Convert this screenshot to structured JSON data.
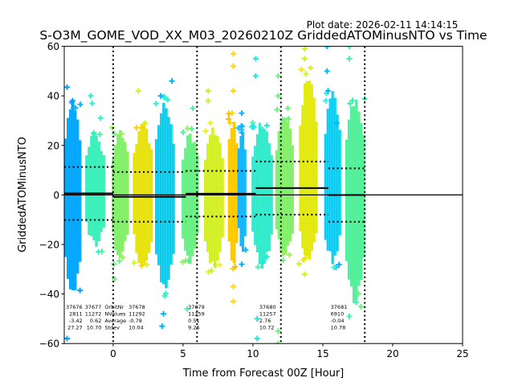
{
  "chart_data": {
    "type": "scatter",
    "title": "S-O3M_GOME_VOD_XX_M03_20260210Z GriddedATOMinusNTO vs Time",
    "plot_date": "Plot date: 2026-02-11 14:14:15",
    "xlabel": "Time from Forecast 00Z [Hour]",
    "ylabel": "GriddedATOMinusNTO",
    "xlim": [
      -3.5,
      25
    ],
    "ylim": [
      -60,
      60
    ],
    "xticks": [
      0,
      5,
      10,
      15,
      20,
      25
    ],
    "yticks": [
      -60,
      -40,
      -20,
      0,
      20,
      40,
      60
    ],
    "xtick_labels": [
      "0",
      "5",
      "10",
      "15",
      "20",
      "25"
    ],
    "ytick_labels": [
      "−60",
      "−40",
      "−20",
      "0",
      "20",
      "40",
      "60"
    ],
    "zero_line": 0,
    "orbit_boundaries": [
      0,
      6,
      12,
      18
    ],
    "swaths": [
      {
        "x0": -3.5,
        "x1": -2.3,
        "c0": "#00a0ff",
        "c1": "#10b4ff",
        "ymax": 38,
        "ymin": -42,
        "outliers": [
          [
            -3.3,
            43.5
          ],
          [
            -3.3,
            -58
          ]
        ]
      },
      {
        "x0": -2.0,
        "x1": -0.6,
        "c0": "#30f0c8",
        "c1": "#50f0a8",
        "ymax": 26,
        "ymin": -22,
        "outliers": [
          [
            -1.6,
            40
          ],
          [
            -1.5,
            37
          ],
          [
            -0.9,
            31
          ]
        ]
      },
      {
        "x0": -0.1,
        "x1": 1.1,
        "c0": "#70f080",
        "c1": "#a0f050",
        "ymax": 27,
        "ymin": -27,
        "outliers": [
          [
            0.1,
            -34
          ]
        ]
      },
      {
        "x0": 1.4,
        "x1": 2.8,
        "c0": "#d8f020",
        "c1": "#ffd000",
        "ymax": 30,
        "ymin": -30,
        "outliers": [
          [
            1.8,
            42
          ],
          [
            2.3,
            29
          ]
        ]
      },
      {
        "x0": 3.0,
        "x1": 4.4,
        "c0": "#00b4ff",
        "c1": "#30f0d0",
        "ymax": 38,
        "ymin": -40,
        "outliers": [
          [
            3.4,
            40
          ],
          [
            4.2,
            46
          ],
          [
            3.6,
            -48
          ],
          [
            3.5,
            -53
          ]
        ]
      },
      {
        "x0": 4.9,
        "x1": 6.1,
        "c0": "#50f0a0",
        "c1": "#90f060",
        "ymax": 26,
        "ymin": -28,
        "outliers": [
          [
            5.7,
            35
          ],
          [
            5.3,
            -46
          ]
        ]
      },
      {
        "x0": 6.5,
        "x1": 7.9,
        "c0": "#c0f030",
        "c1": "#f0f020",
        "ymax": 28,
        "ymin": -30,
        "outliers": [
          [
            6.8,
            42
          ],
          [
            6.8,
            38
          ]
        ]
      },
      {
        "x0": 8.2,
        "x1": 8.9,
        "c0": "#ffd800",
        "c1": "#ffb800",
        "ymax": 32,
        "ymin": -30,
        "outliers": [
          [
            8.6,
            57
          ],
          [
            8.6,
            52
          ],
          [
            8.6,
            42
          ],
          [
            8.6,
            -37
          ],
          [
            8.6,
            -43
          ]
        ]
      },
      {
        "x0": 8.9,
        "x1": 9.5,
        "c0": "#10b0ff",
        "c1": "#20c0ff",
        "ymax": 28,
        "ymin": -24,
        "outliers": [
          [
            9.2,
            33
          ],
          [
            9.2,
            -28
          ]
        ]
      },
      {
        "x0": 9.9,
        "x1": 11.4,
        "c0": "#20e8e0",
        "c1": "#50f0b0",
        "ymax": 30,
        "ymin": -30,
        "outliers": [
          [
            10.2,
            55
          ],
          [
            10.2,
            48
          ],
          [
            10.3,
            -50
          ],
          [
            10.3,
            -58
          ],
          [
            11.0,
            28
          ],
          [
            11.0,
            -25
          ]
        ]
      },
      {
        "x0": 11.6,
        "x1": 12.9,
        "c0": "#70f080",
        "c1": "#a0f050",
        "ymax": 34,
        "ymin": -26,
        "outliers": [
          [
            11.8,
            48
          ],
          [
            11.8,
            40
          ],
          [
            12.5,
            35
          ],
          [
            11.8,
            -55
          ],
          [
            11.8,
            -60
          ]
        ]
      },
      {
        "x0": 13.3,
        "x1": 14.6,
        "c0": "#d0f020",
        "c1": "#ffe000",
        "ymax": 50,
        "ymin": -28,
        "outliers": [
          [
            13.7,
            59
          ],
          [
            13.7,
            55
          ],
          [
            13.7,
            -32
          ]
        ]
      },
      {
        "x0": 15.1,
        "x1": 16.3,
        "c0": "#00b8ff",
        "c1": "#30f0e0",
        "ymax": 42,
        "ymin": -28,
        "outliers": [
          [
            15.3,
            60
          ],
          [
            15.3,
            50
          ],
          [
            16.0,
            29
          ]
        ]
      },
      {
        "x0": 16.6,
        "x1": 18.0,
        "c0": "#40f0b0",
        "c1": "#70f080",
        "ymax": 40,
        "ymin": -44,
        "outliers": [
          [
            16.9,
            60
          ],
          [
            16.9,
            55
          ],
          [
            16.9,
            -49
          ]
        ]
      }
    ],
    "mean_segments": [
      {
        "x0": -3.5,
        "x1": 0.0,
        "mean": 0.62,
        "plus_sd": 11.3,
        "minus_sd": -10.1
      },
      {
        "x0": 0.0,
        "x1": 5.2,
        "mean": -0.78,
        "plus_sd": 9.26,
        "minus_sd": -10.82
      },
      {
        "x0": 5.2,
        "x1": 10.2,
        "mean": 0.51,
        "plus_sd": 9.7,
        "minus_sd": -8.7
      },
      {
        "x0": 10.2,
        "x1": 15.4,
        "mean": 2.76,
        "plus_sd": 13.48,
        "minus_sd": -7.96
      },
      {
        "x0": 15.4,
        "x1": 18.0,
        "mean": -0.04,
        "plus_sd": 10.74,
        "minus_sd": -10.82
      }
    ],
    "legend_labels": [
      "OrbitNr",
      "NValues",
      "Average",
      "Stdev"
    ],
    "orbit_stats": [
      {
        "x": -2.7,
        "orbit": "37676",
        "nvalues": "2811",
        "average": "-3.42",
        "stdev": "27.27"
      },
      {
        "x": -2.2,
        "orbit": "37677",
        "nvalues": "11272",
        "average": "0.62",
        "stdev": "10.70"
      },
      {
        "x": 0.2,
        "orbit": "37678",
        "nvalues": "11292",
        "average": "-0.78",
        "stdev": "10.04"
      },
      {
        "x": 5.3,
        "orbit": "37679",
        "nvalues": "11259",
        "average": "0.51",
        "stdev": "9.26"
      },
      {
        "x": 10.4,
        "orbit": "37680",
        "nvalues": "11257",
        "average": "2.76",
        "stdev": "10.72"
      },
      {
        "x": 15.5,
        "orbit": "37681",
        "nvalues": "6910",
        "average": "-0.04",
        "stdev": "10.78"
      }
    ]
  }
}
